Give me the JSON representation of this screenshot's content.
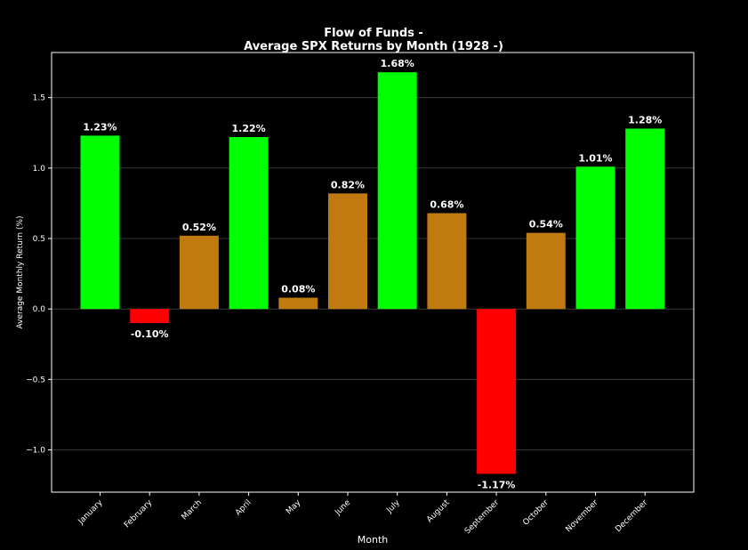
{
  "colors": {
    "positive_high": "#00ff00",
    "positive_low": "#c07a10",
    "negative": "#ff0000",
    "background": "#000000",
    "grid": "#444444",
    "text": "#ffffff"
  },
  "chart_data": {
    "type": "bar",
    "title_line1": "Flow of Funds -",
    "title_line2": "Average SPX Returns by Month (1928 -)",
    "xlabel": "Month",
    "ylabel": "Average Monthly Return (%)",
    "ylim": [
      -1.3,
      1.82
    ],
    "grid": true,
    "yticks": [
      1.5,
      1.0,
      0.5,
      0.0,
      -0.5,
      -1.0
    ],
    "ytick_labels": [
      "1.5",
      "1.0",
      "0.5",
      "0.0",
      "−0.5",
      "−1.0"
    ],
    "categories": [
      "January",
      "February",
      "March",
      "April",
      "May",
      "June",
      "July",
      "August",
      "September",
      "October",
      "November",
      "December"
    ],
    "values": [
      1.23,
      -0.1,
      0.52,
      1.22,
      0.08,
      0.82,
      1.68,
      0.68,
      -1.17,
      0.54,
      1.01,
      1.28
    ],
    "value_labels": [
      "1.23%",
      "-0.10%",
      "0.52%",
      "1.22%",
      "0.08%",
      "0.82%",
      "1.68%",
      "0.68%",
      "-1.17%",
      "0.54%",
      "1.01%",
      "1.28%"
    ],
    "bar_colors": [
      "#00ff00",
      "#ff0000",
      "#c07a10",
      "#00ff00",
      "#c07a10",
      "#c07a10",
      "#00ff00",
      "#c07a10",
      "#ff0000",
      "#c07a10",
      "#00ff00",
      "#00ff00"
    ]
  }
}
